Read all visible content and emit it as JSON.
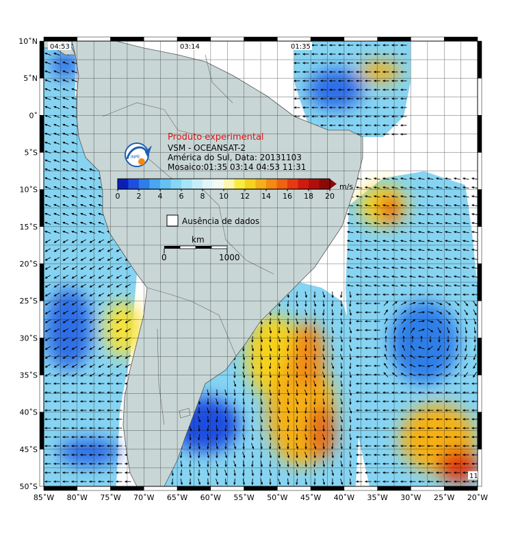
{
  "legend": {
    "title": "Produto experimental",
    "line1": "VSM - OCEANSAT-2",
    "line2": "América do Sul, Data: 20131103",
    "line3": "Mosaico:01:35 03:14 04:53 11:31",
    "logo_text": "INPE",
    "nodata_label": "Ausência de dados",
    "unit": "m/s",
    "scalebar_unit": "km",
    "scalebar_start": "0",
    "scalebar_end": "1000"
  },
  "colorbar": {
    "ticks": [
      "0",
      "2",
      "4",
      "6",
      "8",
      "10",
      "12",
      "14",
      "16",
      "18",
      "20"
    ],
    "colors": [
      "#0b1fb8",
      "#1e4ee0",
      "#2f7ee8",
      "#4aa6f0",
      "#66c2f2",
      "#86d6f4",
      "#a8e4f6",
      "#c6eef8",
      "#e2f6fa",
      "#f4fbf2",
      "#fbf7b0",
      "#f8ec40",
      "#f6d21e",
      "#f4b018",
      "#f28a14",
      "#ee6212",
      "#e63a10",
      "#d01a10",
      "#b0100c",
      "#8a0a08"
    ]
  },
  "passes": {
    "p1": "04:53",
    "p2": "03:14",
    "p3": "01:35",
    "p4": "11"
  },
  "axes": {
    "lon_labels": [
      "85˚W",
      "80˚W",
      "75˚W",
      "70˚W",
      "65˚W",
      "60˚W",
      "55˚W",
      "50˚W",
      "45˚W",
      "40˚W",
      "35˚W",
      "30˚W",
      "25˚W",
      "20˚W"
    ],
    "lat_labels": [
      "10˚N",
      "5˚N",
      "0˚",
      "5˚S",
      "10˚S",
      "15˚S",
      "20˚S",
      "25˚S",
      "30˚S",
      "35˚S",
      "40˚S",
      "45˚S",
      "50˚S"
    ]
  },
  "colors": {
    "land": "#c9d6d6",
    "ocean_base": "#86d4f2",
    "nodata": "#ffffff",
    "title_red": "#e01010"
  }
}
